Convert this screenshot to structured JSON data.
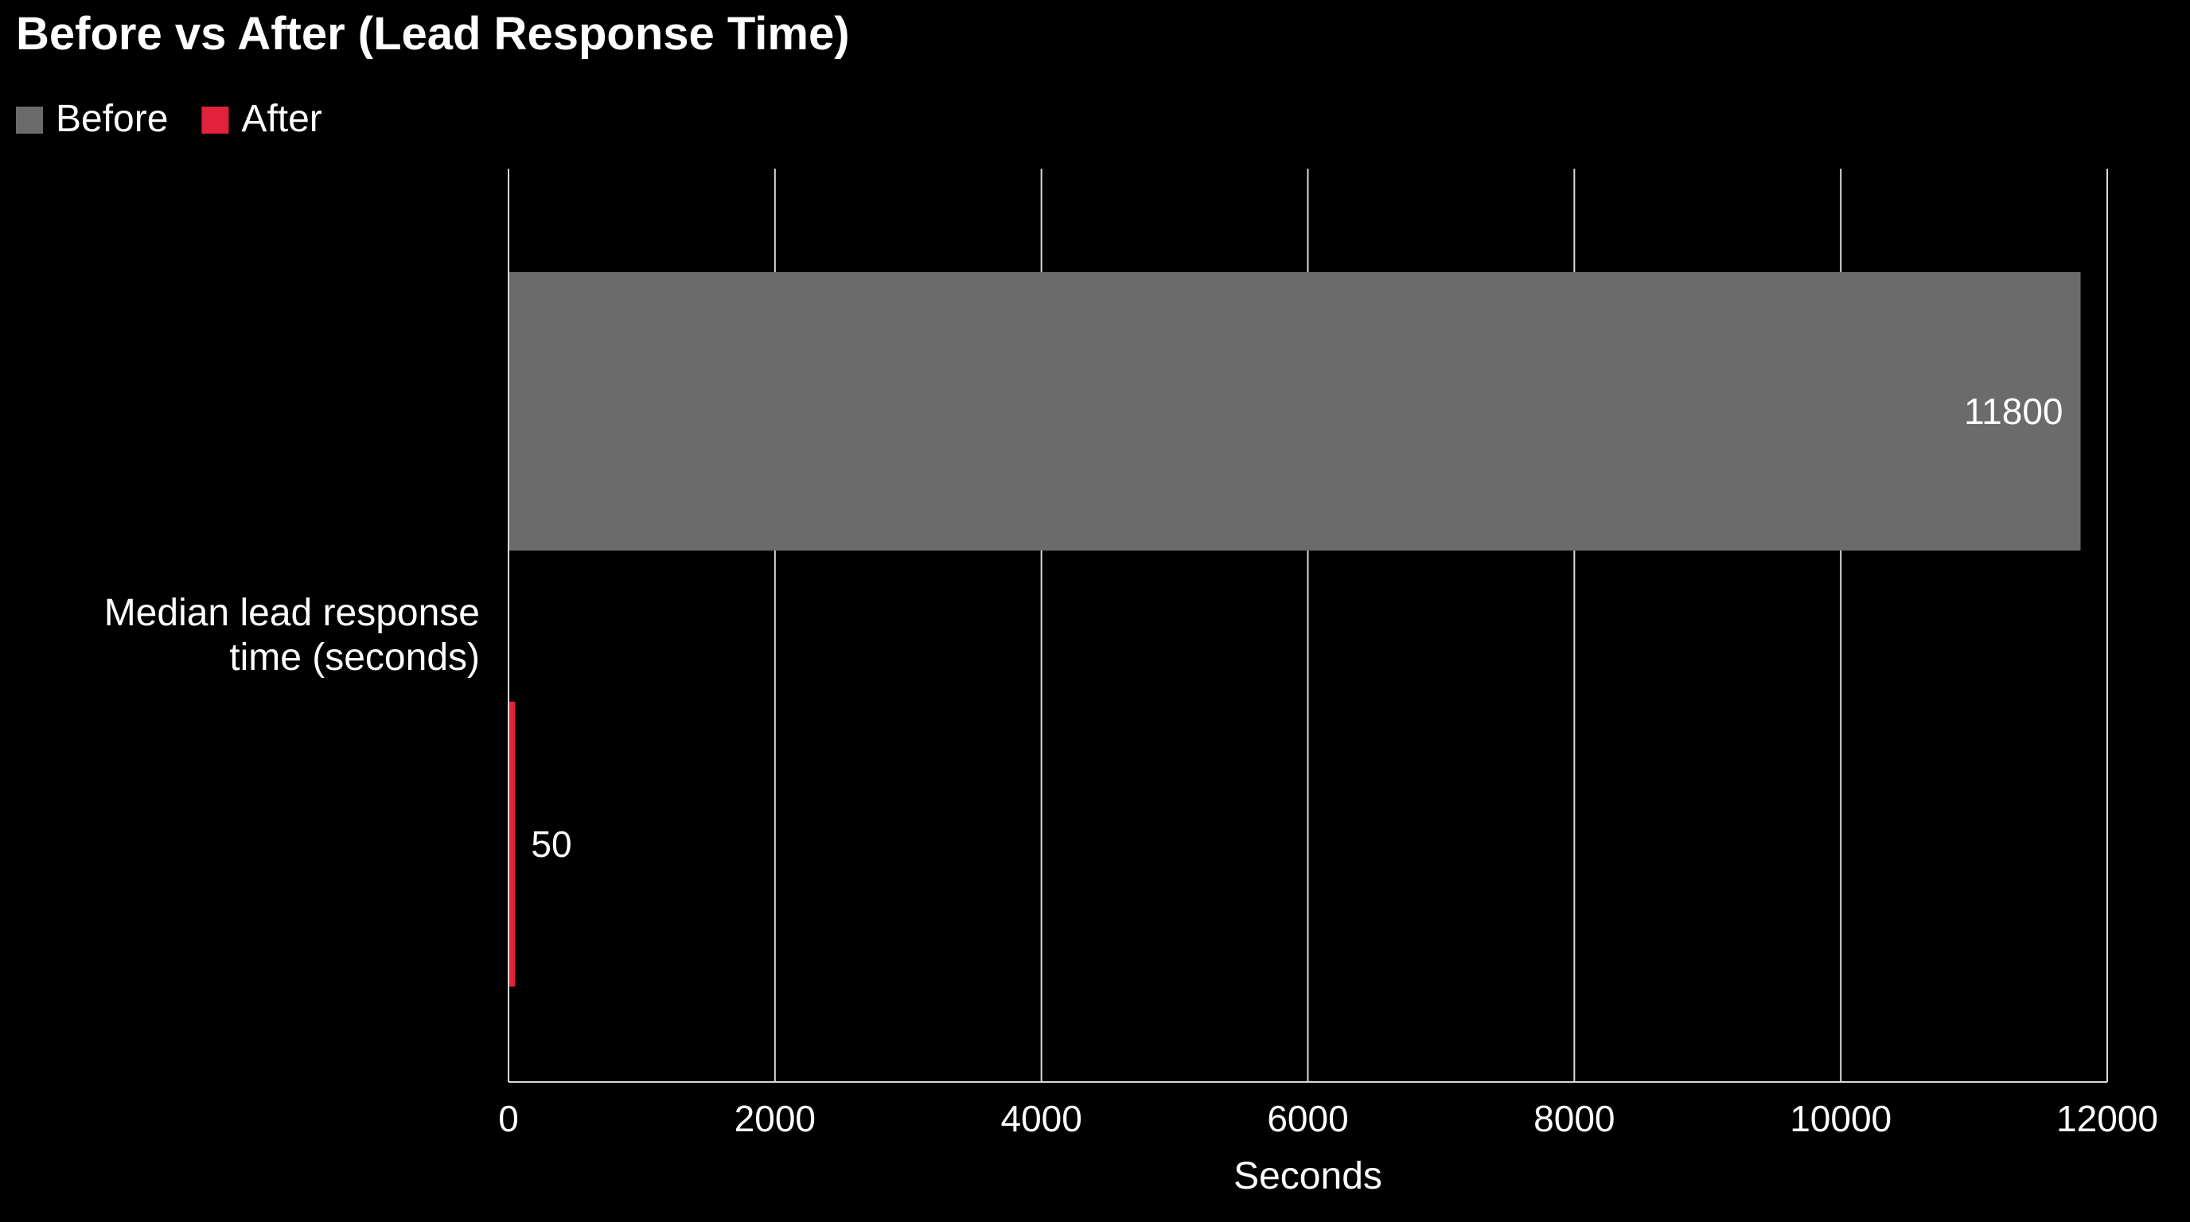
{
  "chart_data": {
    "type": "bar",
    "orientation": "horizontal",
    "title": "Before vs After (Lead Response Time)",
    "categories": [
      "Median lead response time (seconds)"
    ],
    "category_label_lines": [
      "Median lead response",
      "time (seconds)"
    ],
    "series": [
      {
        "name": "Before",
        "values": [
          11800
        ],
        "color": "#6b6b6b"
      },
      {
        "name": "After",
        "values": [
          50
        ],
        "color": "#e0223c"
      }
    ],
    "xlabel": "Seconds",
    "ylabel": "",
    "xlim": [
      0,
      12000
    ],
    "xticks": [
      0,
      2000,
      4000,
      6000,
      8000,
      10000,
      12000
    ],
    "grid": true,
    "legend_position": "top-left",
    "data_labels": true
  },
  "colors": {
    "background": "#000000",
    "text": "#ffffff",
    "grid": "#d9d9d9"
  }
}
